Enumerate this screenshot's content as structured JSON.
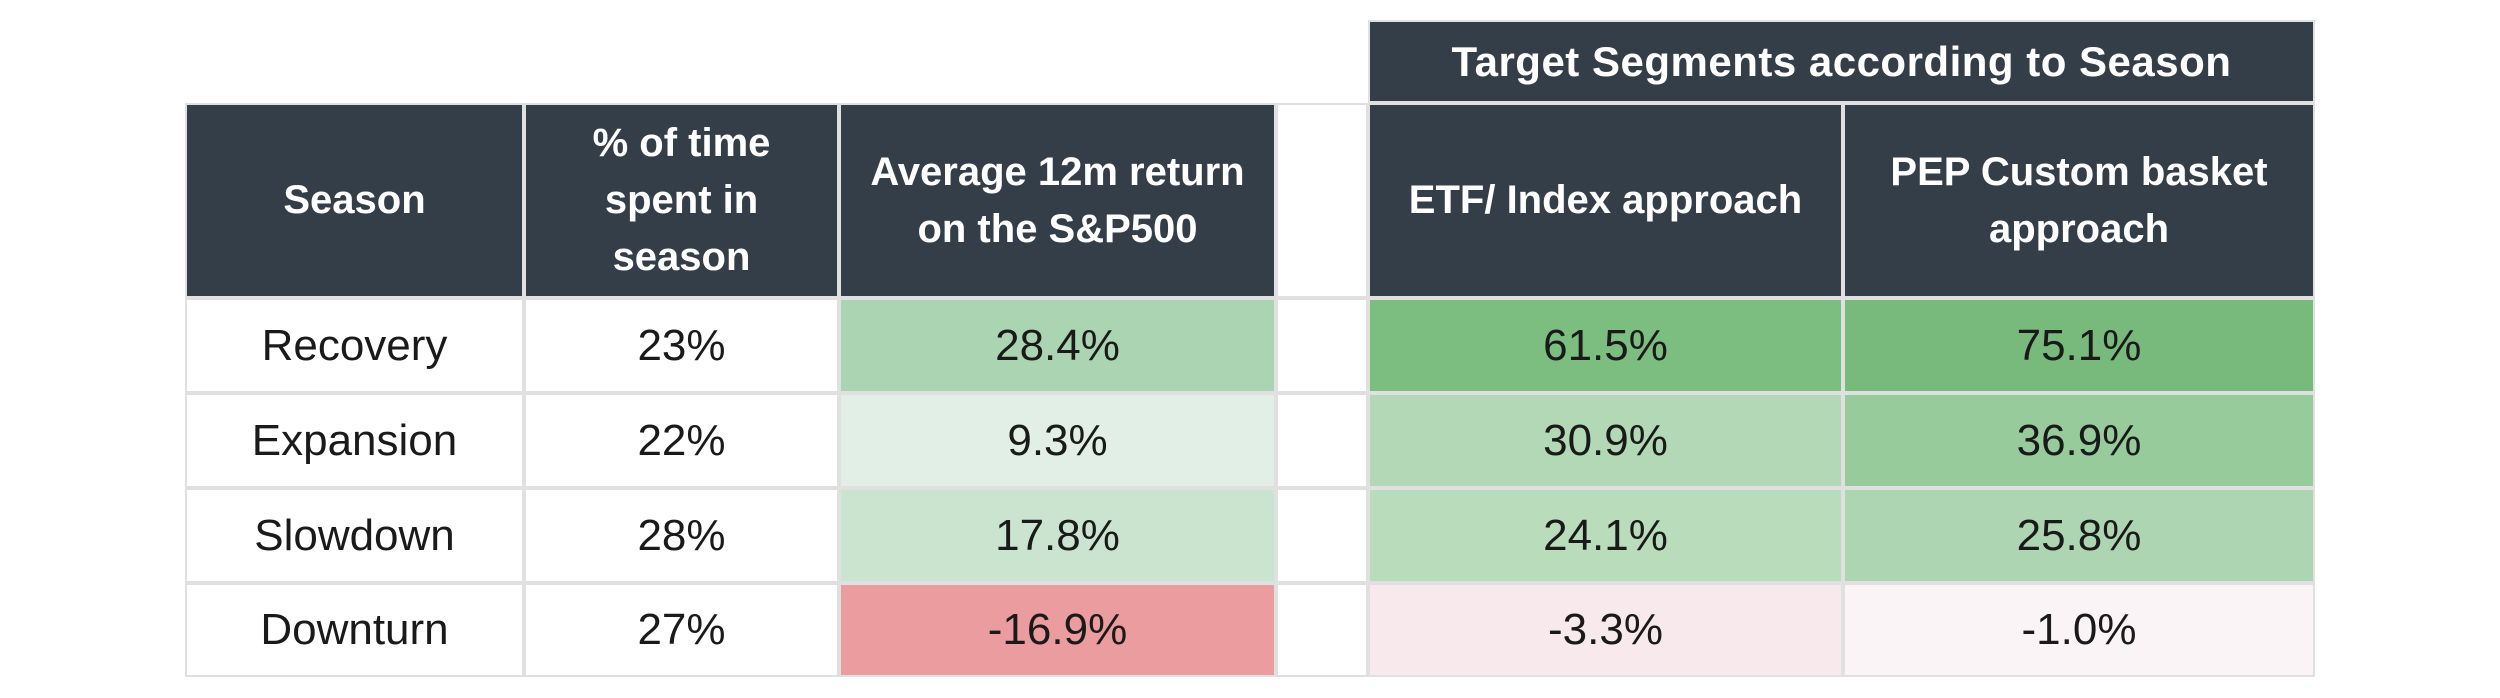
{
  "table": {
    "band_title": "Target Segments according to Season",
    "headers": [
      "Season",
      "% of time spent in season",
      "Average 12m return on the S&P500",
      "ETF/ Index approach",
      "PEP Custom basket approach"
    ],
    "rows": [
      {
        "season": "Recovery",
        "time_pct": "23%",
        "sp500_return": "28.4%",
        "etf_return": "61.5%",
        "pep_return": "75.1%",
        "sp500_bg": "#abd5b2",
        "etf_bg": "#7cbd80",
        "pep_bg": "#78ba7c"
      },
      {
        "season": "Expansion",
        "time_pct": "22%",
        "sp500_return": "9.3%",
        "etf_return": "30.9%",
        "pep_return": "36.9%",
        "sp500_bg": "#e2efe6",
        "etf_bg": "#b2d8b5",
        "pep_bg": "#97cb9b"
      },
      {
        "season": "Slowdown",
        "time_pct": "28%",
        "sp500_return": "17.8%",
        "etf_return": "24.1%",
        "pep_return": "25.8%",
        "sp500_bg": "#cbe4cf",
        "etf_bg": "#b9dcbb",
        "pep_bg": "#aed5b1"
      },
      {
        "season": "Downturn",
        "time_pct": "27%",
        "sp500_return": "-16.9%",
        "etf_return": "-3.3%",
        "pep_return": "-1.0%",
        "sp500_bg": "#eb9c9e",
        "etf_bg": "#f8e9ec",
        "pep_bg": "#fbf4f7"
      }
    ],
    "colors": {
      "header_bg": "#343e49",
      "header_text": "#ffffff",
      "body_text": "#1a1a1a",
      "grid_line": "#e0e0e0",
      "background": "#ffffff"
    }
  },
  "chart_data": {
    "type": "table",
    "title": "Target Segments according to Season",
    "columns": [
      "Season",
      "% of time spent in season",
      "Average 12m return on the S&P500",
      "ETF/ Index approach",
      "PEP Custom basket approach"
    ],
    "rows": [
      [
        "Recovery",
        "23%",
        "28.4%",
        "61.5%",
        "75.1%"
      ],
      [
        "Expansion",
        "22%",
        "9.3%",
        "30.9%",
        "36.9%"
      ],
      [
        "Slowdown",
        "28%",
        "17.8%",
        "24.1%",
        "25.8%"
      ],
      [
        "Downturn",
        "27%",
        "-16.9%",
        "-3.3%",
        "-1.0%"
      ]
    ]
  }
}
